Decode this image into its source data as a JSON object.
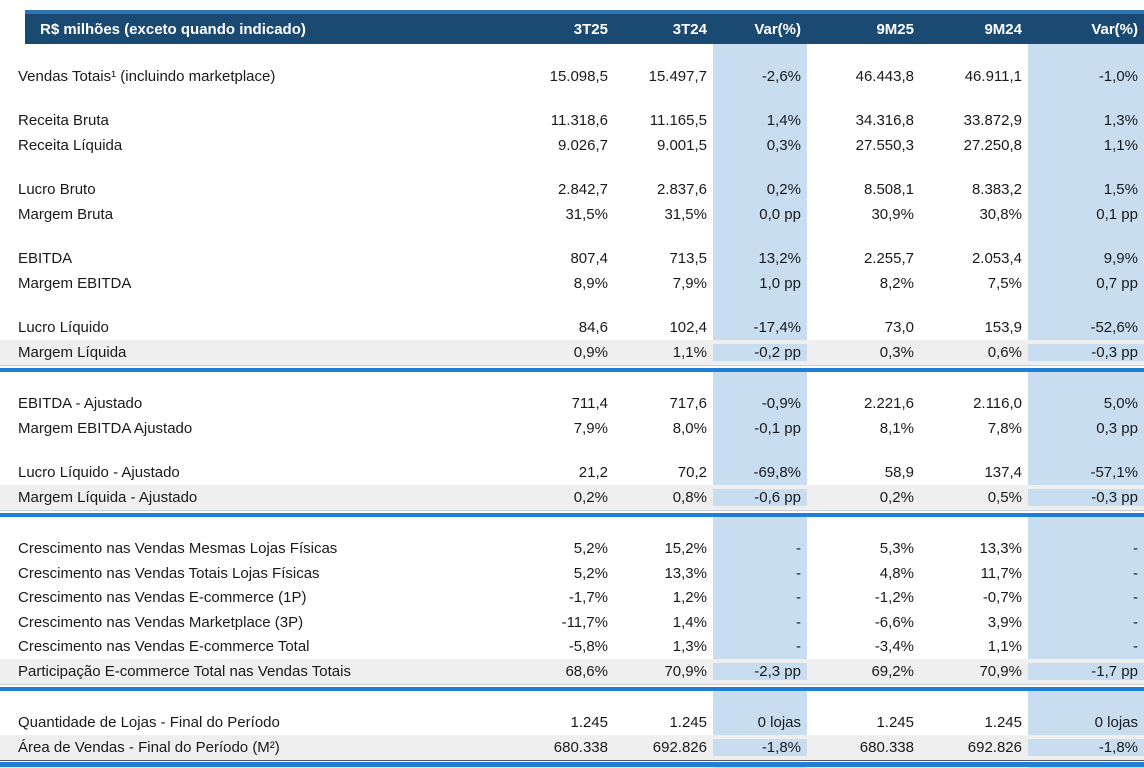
{
  "header": {
    "label": "R$ milhões (exceto quando indicado)",
    "columns": [
      "3T25",
      "3T24",
      "Var(%)",
      "9M25",
      "9M24",
      "Var(%)"
    ]
  },
  "colors": {
    "header_bg": "#1a4a72",
    "header_text": "#ffffff",
    "accent_top_line": "#2e75b6",
    "var_column_band": "#c9ddf1",
    "shaded_row": "#efefef",
    "separator_line": "#1f7fd6",
    "text": "#1a1a1a"
  },
  "sections": [
    {
      "rows": [
        {
          "label": "Vendas Totais¹ (incluindo marketplace)",
          "values": [
            "15.098,5",
            "15.497,7",
            "-2,6%",
            "46.443,8",
            "46.911,1",
            "-1,0%"
          ]
        }
      ]
    },
    {
      "rows": [
        {
          "label": "Receita Bruta",
          "values": [
            "11.318,6",
            "11.165,5",
            "1,4%",
            "34.316,8",
            "33.872,9",
            "1,3%"
          ]
        },
        {
          "label": "Receita Líquida",
          "values": [
            "9.026,7",
            "9.001,5",
            "0,3%",
            "27.550,3",
            "27.250,8",
            "1,1%"
          ]
        }
      ]
    },
    {
      "rows": [
        {
          "label": "Lucro Bruto",
          "values": [
            "2.842,7",
            "2.837,6",
            "0,2%",
            "8.508,1",
            "8.383,2",
            "1,5%"
          ]
        },
        {
          "label": "Margem Bruta",
          "values": [
            "31,5%",
            "31,5%",
            "0,0 pp",
            "30,9%",
            "30,8%",
            "0,1 pp"
          ]
        }
      ]
    },
    {
      "rows": [
        {
          "label": "EBITDA",
          "values": [
            "807,4",
            "713,5",
            "13,2%",
            "2.255,7",
            "2.053,4",
            "9,9%"
          ]
        },
        {
          "label": "Margem EBITDA",
          "values": [
            "8,9%",
            "7,9%",
            "1,0 pp",
            "8,2%",
            "7,5%",
            "0,7 pp"
          ]
        }
      ]
    },
    {
      "separator_after": "mid",
      "rows": [
        {
          "label": "Lucro Líquido",
          "values": [
            "84,6",
            "102,4",
            "-17,4%",
            "73,0",
            "153,9",
            "-52,6%"
          ]
        },
        {
          "label": "Margem Líquida",
          "shaded": true,
          "values": [
            "0,9%",
            "1,1%",
            "-0,2 pp",
            "0,3%",
            "0,6%",
            "-0,3 pp"
          ]
        }
      ]
    },
    {
      "rows": [
        {
          "label": "EBITDA - Ajustado",
          "values": [
            "711,4",
            "717,6",
            "-0,9%",
            "2.221,6",
            "2.116,0",
            "5,0%"
          ]
        },
        {
          "label": "Margem EBITDA Ajustado",
          "values": [
            "7,9%",
            "8,0%",
            "-0,1 pp",
            "8,1%",
            "7,8%",
            "0,3 pp"
          ]
        }
      ]
    },
    {
      "separator_after": "mid",
      "rows": [
        {
          "label": "Lucro Líquido - Ajustado",
          "values": [
            "21,2",
            "70,2",
            "-69,8%",
            "58,9",
            "137,4",
            "-57,1%"
          ]
        },
        {
          "label": "Margem Líquida - Ajustado",
          "shaded": true,
          "values": [
            "0,2%",
            "0,8%",
            "-0,6 pp",
            "0,2%",
            "0,5%",
            "-0,3 pp"
          ]
        }
      ]
    },
    {
      "separator_after": "mid",
      "rows": [
        {
          "label": "Crescimento nas Vendas Mesmas Lojas Físicas",
          "values": [
            "5,2%",
            "15,2%",
            "-",
            "5,3%",
            "13,3%",
            "-"
          ]
        },
        {
          "label": "Crescimento nas Vendas Totais Lojas Físicas",
          "values": [
            "5,2%",
            "13,3%",
            "-",
            "4,8%",
            "11,7%",
            "-"
          ]
        },
        {
          "label": "Crescimento nas Vendas E-commerce (1P)",
          "values": [
            "-1,7%",
            "1,2%",
            "-",
            "-1,2%",
            "-0,7%",
            "-"
          ]
        },
        {
          "label": "Crescimento nas Vendas Marketplace (3P)",
          "values": [
            "-11,7%",
            "1,4%",
            "-",
            "-6,6%",
            "3,9%",
            "-"
          ]
        },
        {
          "label": "Crescimento nas Vendas E-commerce Total",
          "values": [
            "-5,8%",
            "1,3%",
            "-",
            "-3,4%",
            "1,1%",
            "-"
          ]
        },
        {
          "label": "Participação E-commerce Total nas Vendas Totais",
          "shaded": true,
          "values": [
            "68,6%",
            "70,9%",
            "-2,3 pp",
            "69,2%",
            "70,9%",
            "-1,7 pp"
          ]
        }
      ]
    },
    {
      "separator_after": "bottom",
      "rows": [
        {
          "label": "Quantidade de Lojas - Final do Período",
          "values": [
            "1.245",
            "1.245",
            "0 lojas",
            "1.245",
            "1.245",
            "0 lojas"
          ]
        },
        {
          "label": "Área de Vendas - Final do Período (M²)",
          "shaded": true,
          "values": [
            "680.338",
            "692.826",
            "-1,8%",
            "680.338",
            "692.826",
            "-1,8%"
          ]
        }
      ]
    }
  ]
}
